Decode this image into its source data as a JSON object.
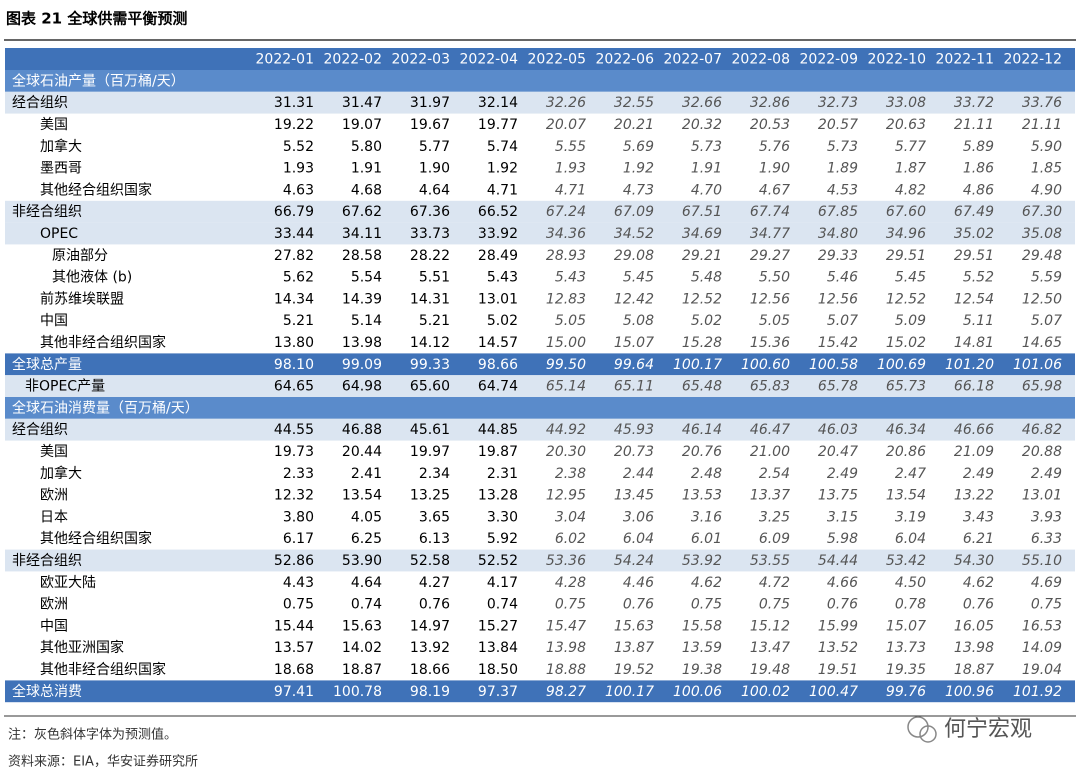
{
  "title": "图表 21 全球供需平衡预测",
  "table": {
    "columns": [
      "2022-01",
      "2022-02",
      "2022-03",
      "2022-04",
      "2022-05",
      "2022-06",
      "2022-07",
      "2022-08",
      "2022-09",
      "2022-10",
      "2022-11",
      "2022-12"
    ],
    "rows": [
      {
        "label": "全球石油产量（百万桶/天）"
      },
      {
        "label": "经合组织",
        "values": [
          "31.31",
          "31.47",
          "31.97",
          "32.14",
          "32.26",
          "32.55",
          "32.66",
          "32.86",
          "32.73",
          "33.08",
          "33.72",
          "33.76"
        ]
      },
      {
        "label": "美国",
        "values": [
          "19.22",
          "19.07",
          "19.67",
          "19.77",
          "20.07",
          "20.21",
          "20.32",
          "20.53",
          "20.57",
          "20.63",
          "21.11",
          "21.11"
        ]
      },
      {
        "label": "加拿大",
        "values": [
          "5.52",
          "5.80",
          "5.77",
          "5.74",
          "5.55",
          "5.69",
          "5.73",
          "5.76",
          "5.73",
          "5.77",
          "5.89",
          "5.90"
        ]
      },
      {
        "label": "墨西哥",
        "values": [
          "1.93",
          "1.91",
          "1.90",
          "1.92",
          "1.93",
          "1.92",
          "1.91",
          "1.90",
          "1.89",
          "1.87",
          "1.86",
          "1.85"
        ]
      },
      {
        "label": "其他经合组织国家",
        "values": [
          "4.63",
          "4.68",
          "4.64",
          "4.71",
          "4.71",
          "4.73",
          "4.70",
          "4.67",
          "4.53",
          "4.82",
          "4.86",
          "4.90"
        ]
      },
      {
        "label": "非经合组织",
        "values": [
          "66.79",
          "67.62",
          "67.36",
          "66.52",
          "67.24",
          "67.09",
          "67.51",
          "67.74",
          "67.85",
          "67.60",
          "67.49",
          "67.30"
        ]
      },
      {
        "label": "OPEC",
        "values": [
          "33.44",
          "34.11",
          "33.73",
          "33.92",
          "34.36",
          "34.52",
          "34.69",
          "34.77",
          "34.80",
          "34.96",
          "35.02",
          "35.08"
        ]
      },
      {
        "label": "原油部分",
        "values": [
          "27.82",
          "28.58",
          "28.22",
          "28.49",
          "28.93",
          "29.08",
          "29.21",
          "29.27",
          "29.33",
          "29.51",
          "29.51",
          "29.48"
        ]
      },
      {
        "label": "其他液体 (b)",
        "values": [
          "5.62",
          "5.54",
          "5.51",
          "5.43",
          "5.43",
          "5.45",
          "5.48",
          "5.50",
          "5.46",
          "5.45",
          "5.52",
          "5.59"
        ]
      },
      {
        "label": "前苏维埃联盟",
        "values": [
          "14.34",
          "14.39",
          "14.31",
          "13.01",
          "12.83",
          "12.42",
          "12.52",
          "12.56",
          "12.56",
          "12.52",
          "12.54",
          "12.50"
        ]
      },
      {
        "label": "中国",
        "values": [
          "5.21",
          "5.14",
          "5.21",
          "5.02",
          "5.05",
          "5.08",
          "5.02",
          "5.05",
          "5.07",
          "5.09",
          "5.11",
          "5.07"
        ]
      },
      {
        "label": "其他非经合组织国家",
        "values": [
          "13.80",
          "13.98",
          "14.12",
          "14.57",
          "15.00",
          "15.07",
          "15.28",
          "15.36",
          "15.42",
          "15.02",
          "14.81",
          "14.65"
        ]
      },
      {
        "label": "全球总产量",
        "values": [
          "98.10",
          "99.09",
          "99.33",
          "98.66",
          "99.50",
          "99.64",
          "100.17",
          "100.60",
          "100.58",
          "100.69",
          "101.20",
          "101.06"
        ]
      },
      {
        "label": "非OPEC产量",
        "values": [
          "64.65",
          "64.98",
          "65.60",
          "64.74",
          "65.14",
          "65.11",
          "65.48",
          "65.83",
          "65.78",
          "65.73",
          "66.18",
          "65.98"
        ]
      },
      {
        "label": "全球石油消费量（百万桶/天）"
      },
      {
        "label": "经合组织",
        "values": [
          "44.55",
          "46.88",
          "45.61",
          "44.85",
          "44.92",
          "45.93",
          "46.14",
          "46.47",
          "46.03",
          "46.34",
          "46.66",
          "46.82"
        ]
      },
      {
        "label": "美国",
        "values": [
          "19.73",
          "20.44",
          "19.97",
          "19.87",
          "20.30",
          "20.73",
          "20.76",
          "21.00",
          "20.47",
          "20.86",
          "21.09",
          "20.88"
        ]
      },
      {
        "label": "加拿大",
        "values": [
          "2.33",
          "2.41",
          "2.34",
          "2.31",
          "2.38",
          "2.44",
          "2.48",
          "2.54",
          "2.49",
          "2.47",
          "2.49",
          "2.49"
        ]
      },
      {
        "label": "欧洲",
        "values": [
          "12.32",
          "13.54",
          "13.25",
          "13.28",
          "12.95",
          "13.45",
          "13.53",
          "13.37",
          "13.75",
          "13.54",
          "13.22",
          "13.01"
        ]
      },
      {
        "label": "日本",
        "values": [
          "3.80",
          "4.05",
          "3.65",
          "3.30",
          "3.04",
          "3.06",
          "3.16",
          "3.25",
          "3.15",
          "3.19",
          "3.43",
          "3.93"
        ]
      },
      {
        "label": "其他经合组织国家",
        "values": [
          "6.17",
          "6.25",
          "6.13",
          "5.92",
          "6.02",
          "6.04",
          "6.01",
          "6.09",
          "5.98",
          "6.04",
          "6.21",
          "6.33"
        ]
      },
      {
        "label": "非经合组织",
        "values": [
          "52.86",
          "53.90",
          "52.58",
          "52.52",
          "53.36",
          "54.24",
          "53.92",
          "53.55",
          "54.44",
          "53.42",
          "54.30",
          "55.10"
        ]
      },
      {
        "label": "欧亚大陆",
        "values": [
          "4.43",
          "4.64",
          "4.27",
          "4.17",
          "4.28",
          "4.46",
          "4.62",
          "4.72",
          "4.66",
          "4.50",
          "4.62",
          "4.69"
        ]
      },
      {
        "label": "欧洲",
        "values": [
          "0.75",
          "0.74",
          "0.76",
          "0.74",
          "0.75",
          "0.76",
          "0.75",
          "0.75",
          "0.76",
          "0.78",
          "0.76",
          "0.75"
        ]
      },
      {
        "label": "中国",
        "values": [
          "15.44",
          "15.63",
          "14.97",
          "15.27",
          "15.47",
          "15.63",
          "15.58",
          "15.12",
          "15.99",
          "15.07",
          "16.05",
          "16.53"
        ]
      },
      {
        "label": "其他亚洲国家",
        "values": [
          "13.57",
          "14.02",
          "13.92",
          "13.84",
          "13.98",
          "13.87",
          "13.59",
          "13.47",
          "13.52",
          "13.73",
          "13.98",
          "14.09"
        ]
      },
      {
        "label": "其他非经合组织国家",
        "values": [
          "18.68",
          "18.87",
          "18.66",
          "18.50",
          "18.88",
          "19.52",
          "19.38",
          "19.48",
          "19.51",
          "19.35",
          "18.87",
          "19.04"
        ]
      },
      {
        "label": "全球总消费",
        "values": [
          "97.41",
          "100.78",
          "98.19",
          "97.37",
          "98.27",
          "100.17",
          "100.06",
          "100.02",
          "100.47",
          "99.76",
          "100.96",
          "101.92"
        ]
      }
    ]
  },
  "notes": [
    "注：灰色斜体字体为预测值。",
    "资料来源：EIA，华安证券研究所"
  ],
  "watermark": "何宁宏观"
}
